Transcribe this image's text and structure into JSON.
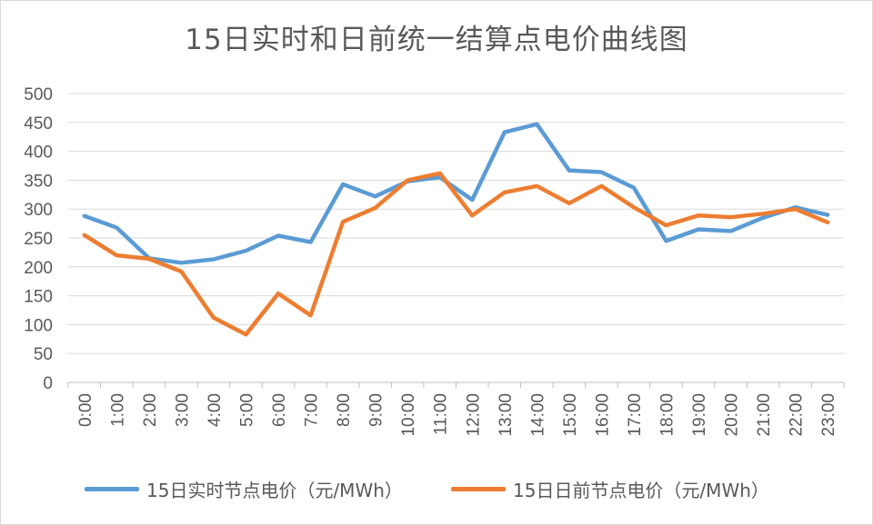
{
  "chart_data": {
    "type": "line",
    "title": "15日实时和日前统一结算点电价曲线图",
    "xlabel": "",
    "ylabel": "",
    "ylim": [
      0,
      500
    ],
    "yticks": [
      0,
      50,
      100,
      150,
      200,
      250,
      300,
      350,
      400,
      450,
      500
    ],
    "grid": true,
    "legend_position": "bottom",
    "categories": [
      "0:00",
      "1:00",
      "2:00",
      "3:00",
      "4:00",
      "5:00",
      "6:00",
      "7:00",
      "8:00",
      "9:00",
      "10:00",
      "11:00",
      "12:00",
      "13:00",
      "14:00",
      "15:00",
      "16:00",
      "17:00",
      "18:00",
      "19:00",
      "20:00",
      "21:00",
      "22:00",
      "23:00"
    ],
    "series": [
      {
        "name": "15日实时节点电价（元/MWh）",
        "color": "#5b9bd5",
        "values": [
          288,
          268,
          215,
          207,
          213,
          228,
          254,
          243,
          343,
          322,
          348,
          355,
          316,
          433,
          447,
          367,
          364,
          337,
          245,
          265,
          262,
          285,
          303,
          290
        ]
      },
      {
        "name": "15日日前节点电价（元/MWh）",
        "color": "#ed7d31",
        "values": [
          255,
          220,
          214,
          192,
          112,
          83,
          154,
          116,
          278,
          302,
          350,
          362,
          289,
          329,
          340,
          310,
          340,
          303,
          272,
          289,
          286,
          292,
          300,
          277
        ]
      }
    ]
  }
}
